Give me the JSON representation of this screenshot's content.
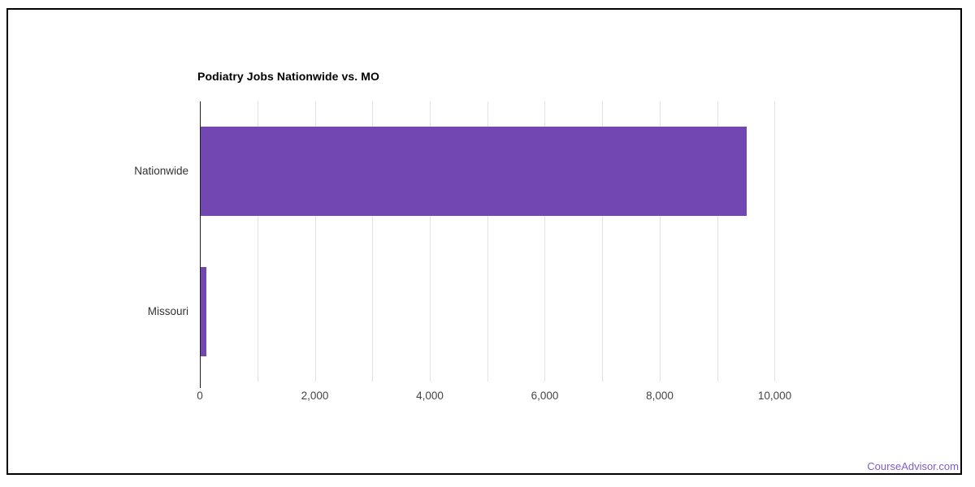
{
  "chart_data": {
    "type": "bar",
    "orientation": "horizontal",
    "title": "Podiatry Jobs Nationwide vs. MO",
    "categories": [
      "Nationwide",
      "Missouri"
    ],
    "values": [
      9500,
      100
    ],
    "xlabel": "",
    "ylabel": "",
    "xlim": [
      0,
      10000
    ],
    "gridline_step": 1000,
    "x_ticks": [
      {
        "value": 0,
        "label": "0"
      },
      {
        "value": 2000,
        "label": "2,000"
      },
      {
        "value": 4000,
        "label": "4,000"
      },
      {
        "value": 6000,
        "label": "6,000"
      },
      {
        "value": 8000,
        "label": "8,000"
      },
      {
        "value": 10000,
        "label": "10,000"
      }
    ],
    "legend_position": "none",
    "grid": true,
    "colors": {
      "bar": "#7347b2",
      "gridline": "#e3e3e3",
      "axis_line": "#212121",
      "title_text": "#000000",
      "category_label_text": "#333333",
      "tick_label_text": "#444444"
    }
  },
  "attribution": {
    "text": "CourseAdvisor.com",
    "color": "#7d5fc9"
  }
}
